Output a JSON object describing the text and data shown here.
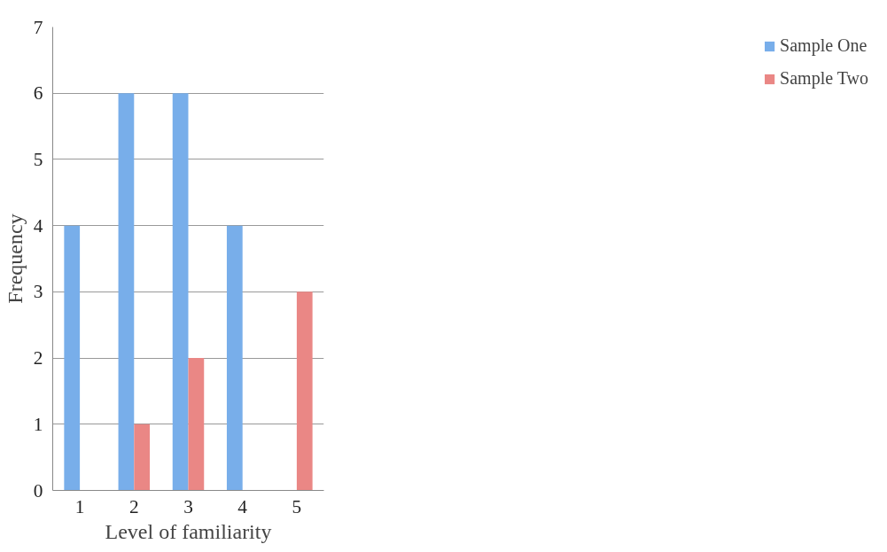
{
  "chart_data": {
    "type": "bar",
    "xlabel": "Level of familiarity",
    "ylabel": "Frequency",
    "categories": [
      "1",
      "2",
      "3",
      "4",
      "5"
    ],
    "series": [
      {
        "name": "Sample One",
        "color": "#78aeea",
        "values": [
          4,
          6,
          6,
          4,
          0
        ]
      },
      {
        "name": "Sample Two",
        "color": "#ea8785",
        "values": [
          0,
          1,
          2,
          0,
          3
        ]
      }
    ],
    "ylim": [
      0,
      7
    ],
    "yticks": [
      0,
      1,
      2,
      3,
      4,
      5,
      6,
      7
    ],
    "grid": "y",
    "legend": "right"
  }
}
